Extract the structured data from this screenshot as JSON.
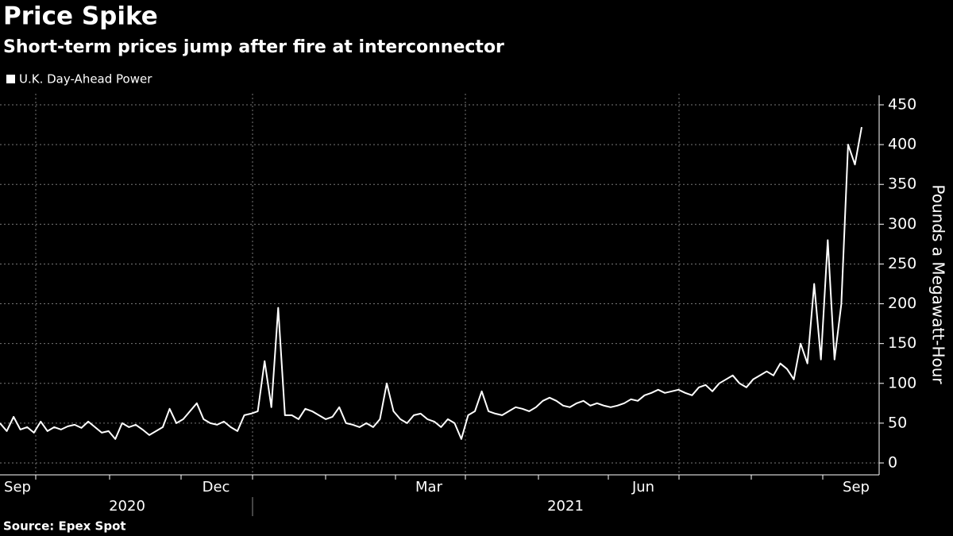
{
  "chart_data": {
    "type": "line",
    "title": "Price Spike",
    "subtitle": "Short-term prices jump after fire at interconnector",
    "source": "Source: Epex Spot",
    "y_axis_label": "Pounds a Megawatt-Hour",
    "month_labels": [
      "Sep",
      "Dec",
      "Mar",
      "Jun",
      "Sep"
    ],
    "year_labels": [
      "2020",
      "2021"
    ],
    "ylim": [
      0,
      450
    ],
    "yticks": [
      0,
      50,
      100,
      150,
      200,
      250,
      300,
      350,
      400,
      450
    ],
    "grid": true,
    "series": [
      {
        "name": "U.K. Day-Ahead Power",
        "color": "#ffffff",
        "values": [
          50,
          40,
          58,
          42,
          45,
          38,
          52,
          40,
          45,
          42,
          46,
          48,
          44,
          52,
          45,
          38,
          40,
          30,
          50,
          45,
          48,
          42,
          35,
          40,
          45,
          68,
          50,
          55,
          65,
          75,
          55,
          50,
          48,
          52,
          45,
          40,
          60,
          62,
          65,
          128,
          70,
          195,
          60,
          60,
          55,
          68,
          65,
          60,
          55,
          58,
          70,
          50,
          48,
          45,
          50,
          45,
          55,
          100,
          65,
          55,
          50,
          60,
          62,
          55,
          52,
          45,
          55,
          50,
          30,
          60,
          65,
          90,
          65,
          62,
          60,
          65,
          70,
          68,
          65,
          70,
          78,
          82,
          78,
          72,
          70,
          75,
          78,
          72,
          75,
          72,
          70,
          72,
          75,
          80,
          78,
          85,
          88,
          92,
          88,
          90,
          92,
          88,
          85,
          95,
          98,
          90,
          100,
          105,
          110,
          100,
          95,
          105,
          110,
          115,
          110,
          125,
          118,
          105,
          150,
          125,
          225,
          130,
          280,
          130,
          200,
          400,
          375,
          422
        ]
      }
    ]
  }
}
